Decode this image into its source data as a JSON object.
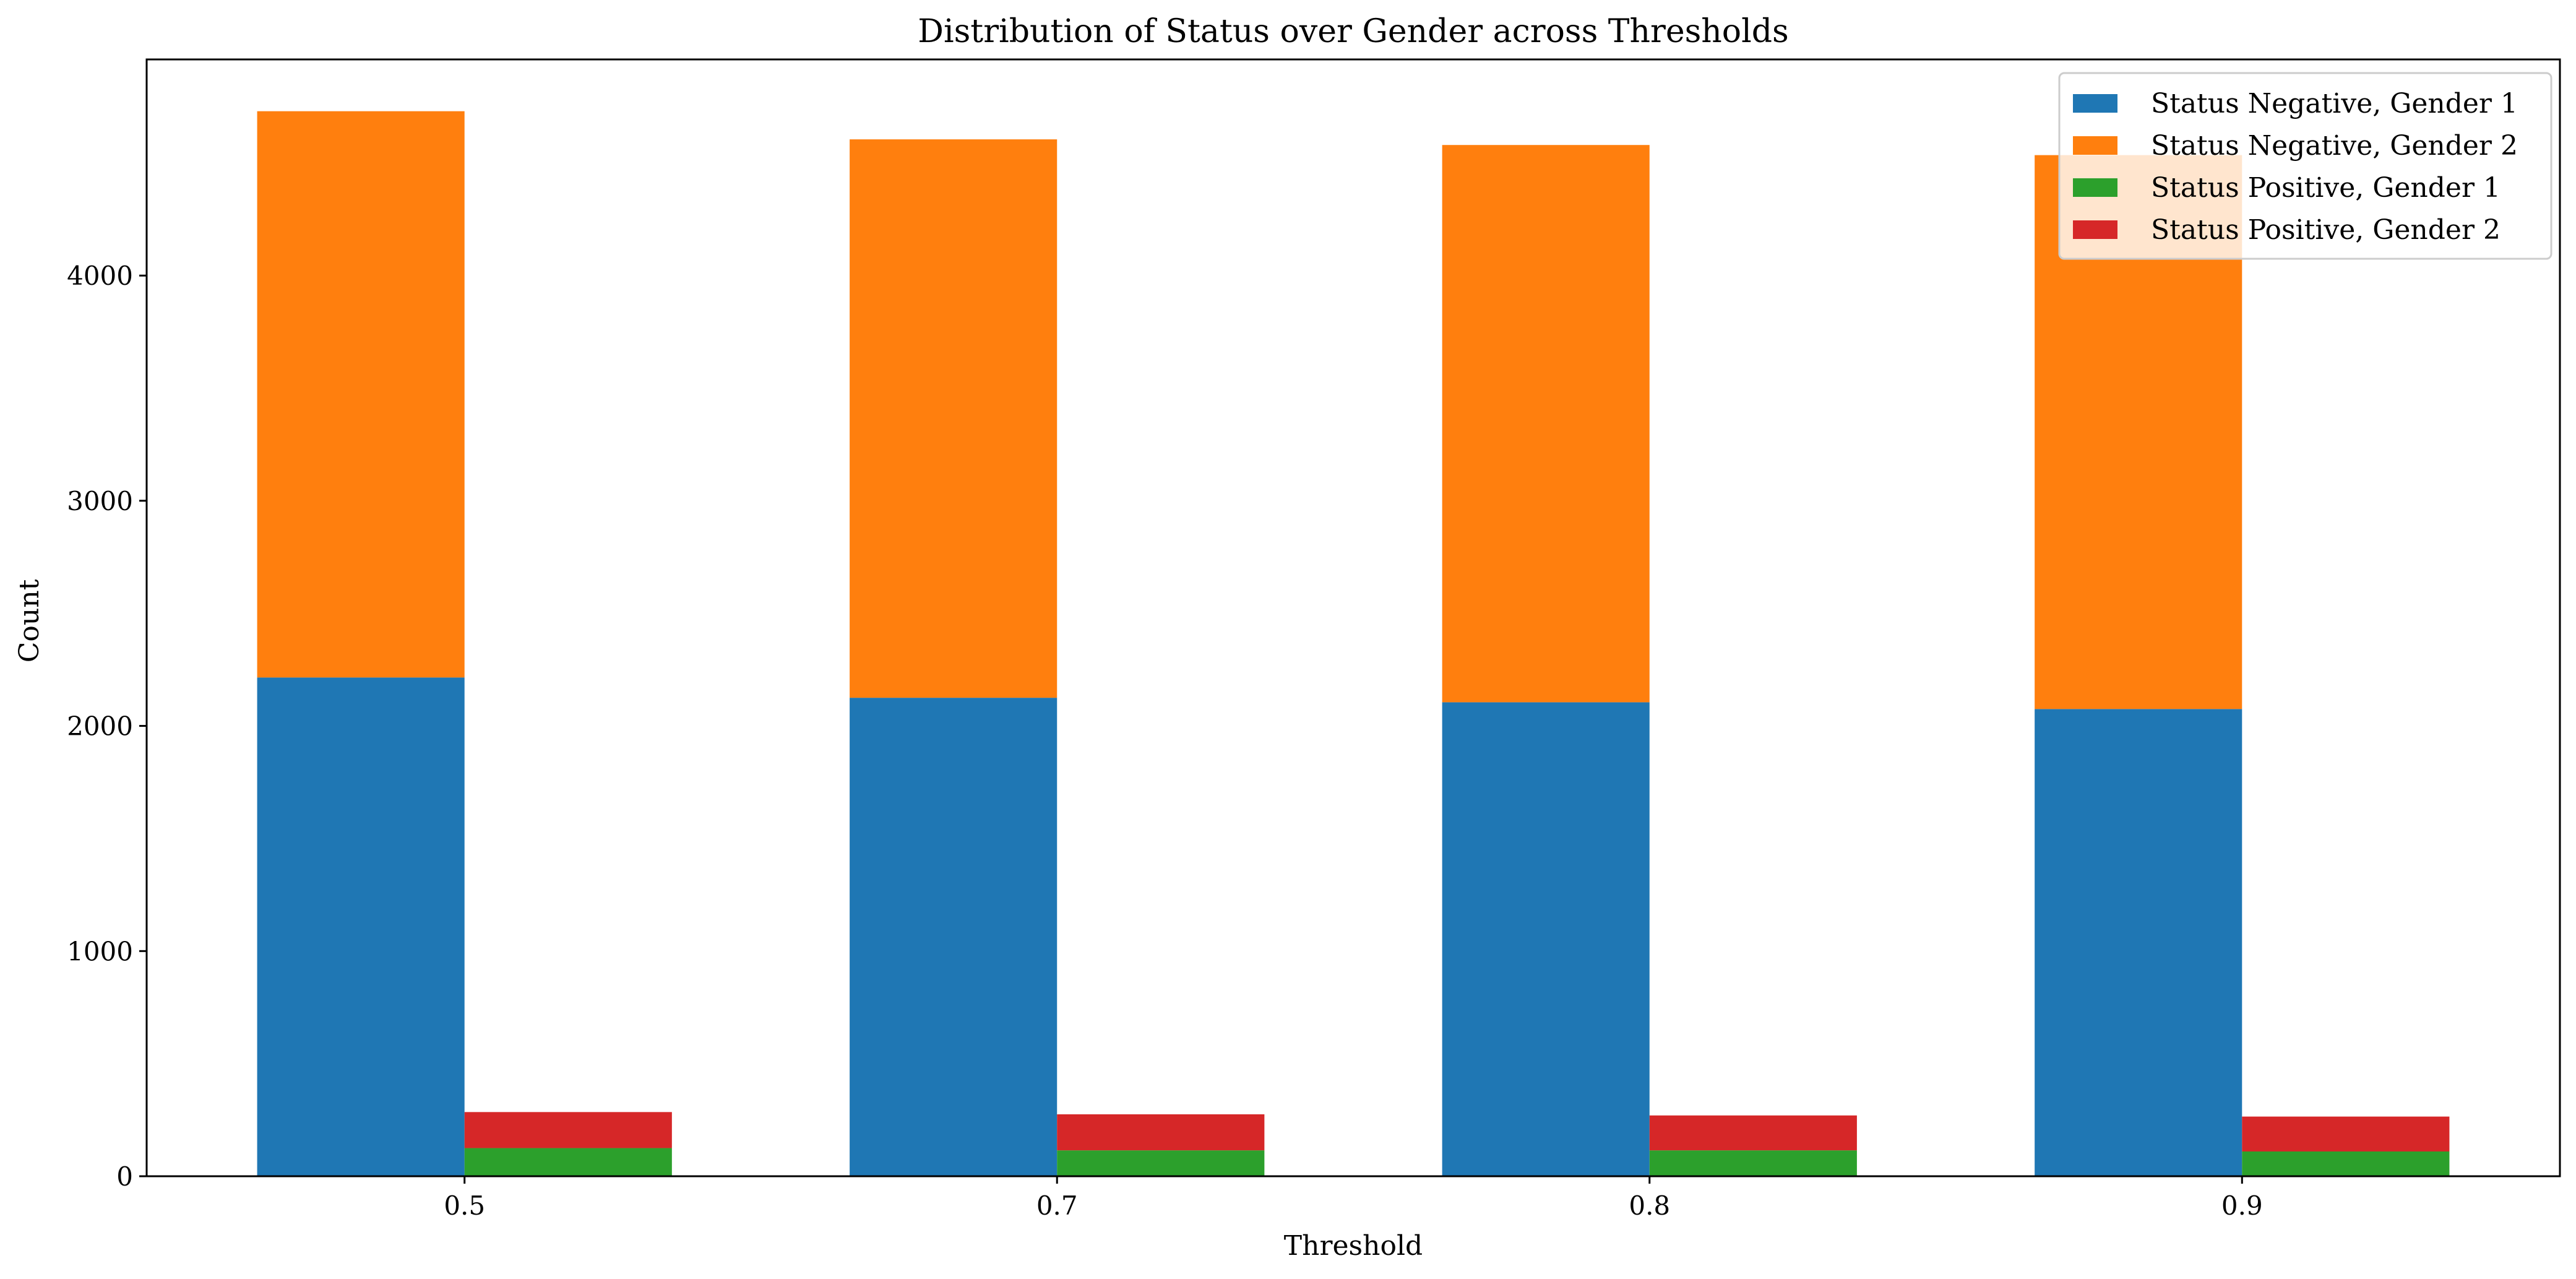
{
  "chart_data": {
    "type": "bar",
    "title": "Distribution of Status over Gender across Thresholds",
    "xlabel": "Threshold",
    "ylabel": "Count",
    "categories": [
      "0.5",
      "0.7",
      "0.8",
      "0.9"
    ],
    "ylim": [
      0,
      4960
    ],
    "yticks": [
      0,
      1000,
      2000,
      3000,
      4000
    ],
    "grid": false,
    "legend_position": "top-right",
    "groups": [
      {
        "name": "Status Negative",
        "series": [
          {
            "name": "Status Negative, Gender 1",
            "color": "#1f77b4",
            "values": [
              2215,
              2125,
              2105,
              2075
            ]
          },
          {
            "name": "Status Negative, Gender 2",
            "color": "#ff7f0e",
            "values": [
              2515,
              2480,
              2475,
              2460
            ]
          }
        ]
      },
      {
        "name": "Status Positive",
        "series": [
          {
            "name": "Status Positive, Gender 1",
            "color": "#2ca02c",
            "values": [
              125,
              115,
              115,
              110
            ]
          },
          {
            "name": "Status Positive, Gender 2",
            "color": "#d62728",
            "values": [
              160,
              160,
              155,
              155
            ]
          }
        ]
      }
    ]
  }
}
